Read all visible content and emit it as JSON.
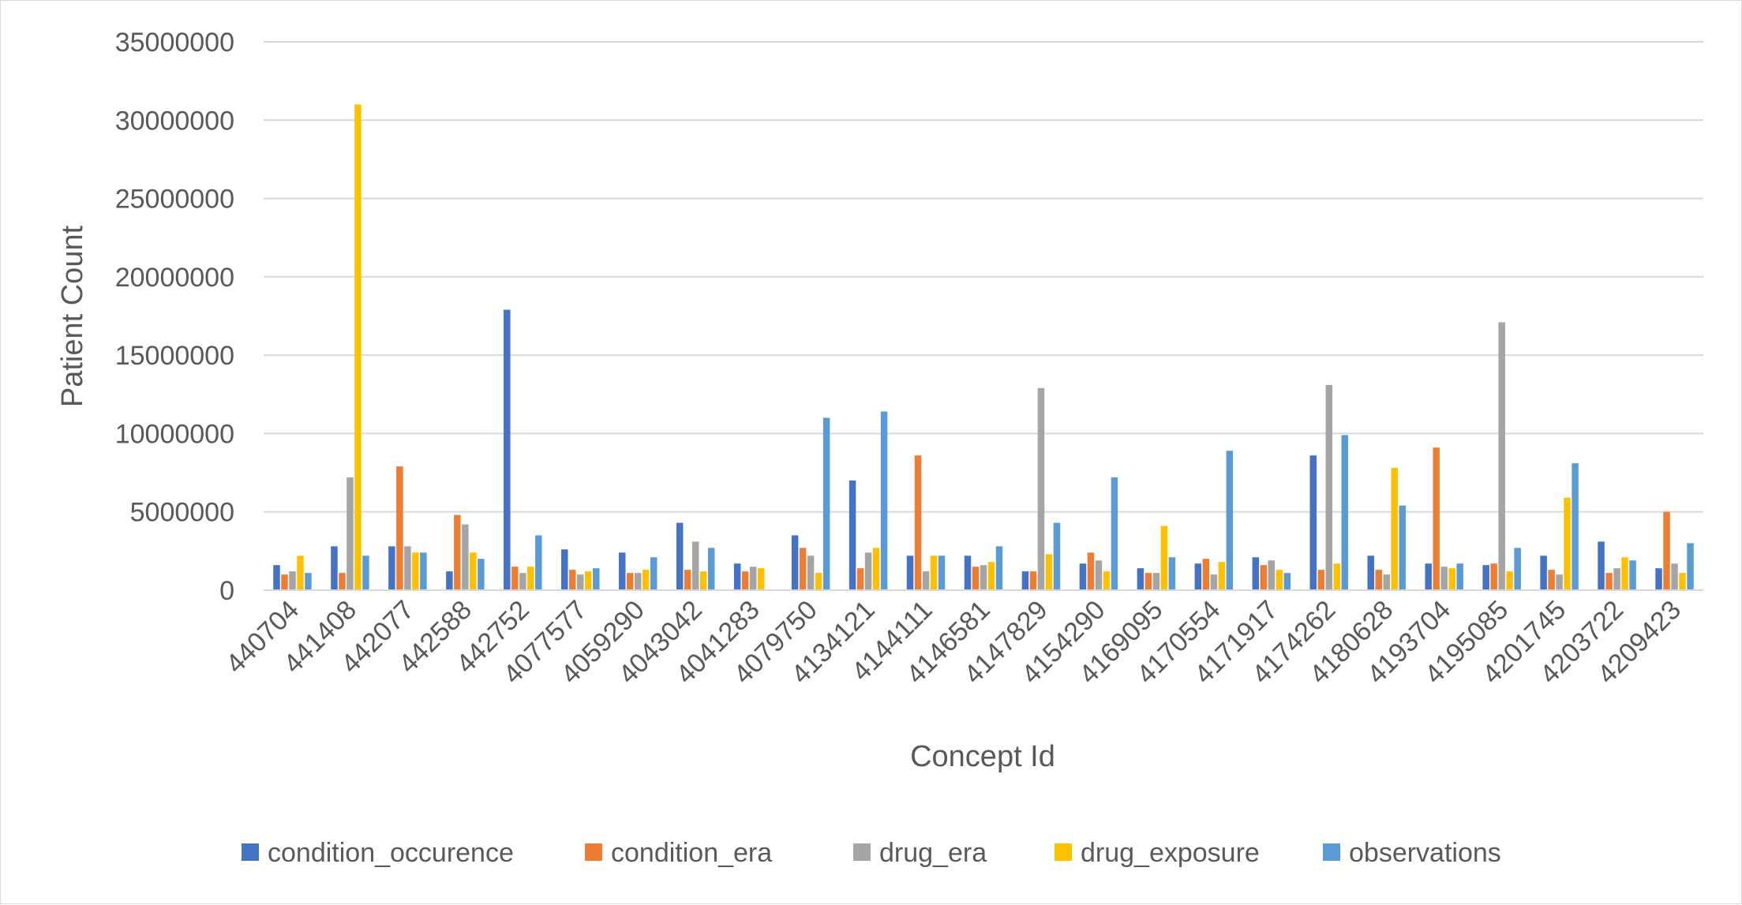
{
  "chart_data": {
    "type": "bar",
    "title": "",
    "xlabel": "Concept Id",
    "ylabel": "Patient Count",
    "ylim": [
      0,
      35000000
    ],
    "yticks": [
      0,
      5000000,
      10000000,
      15000000,
      20000000,
      25000000,
      30000000,
      35000000
    ],
    "grid": true,
    "legend_position": "bottom",
    "categories": [
      "440704",
      "441408",
      "442077",
      "442588",
      "442752",
      "4077577",
      "4059290",
      "4043042",
      "4041283",
      "4079750",
      "4134121",
      "4144111",
      "4146581",
      "4147829",
      "4154290",
      "4169095",
      "4170554",
      "4171917",
      "4174262",
      "4180628",
      "4193704",
      "4195085",
      "4201745",
      "4203722",
      "4209423"
    ],
    "series": [
      {
        "name": "condition_occurence",
        "color": "#4472C4",
        "values": [
          1600000,
          2800000,
          2800000,
          1200000,
          17900000,
          2600000,
          2400000,
          4300000,
          1700000,
          3500000,
          7000000,
          2200000,
          2200000,
          1200000,
          1700000,
          1400000,
          1700000,
          2100000,
          8600000,
          2200000,
          1700000,
          1600000,
          2200000,
          3100000,
          1400000
        ]
      },
      {
        "name": "condition_era",
        "color": "#ED7D31",
        "values": [
          1000000,
          1100000,
          7900000,
          4800000,
          1500000,
          1300000,
          1100000,
          1300000,
          1200000,
          2700000,
          1400000,
          8600000,
          1500000,
          1200000,
          2400000,
          1100000,
          2000000,
          1600000,
          1300000,
          1300000,
          9100000,
          1700000,
          1300000,
          1100000,
          5000000
        ]
      },
      {
        "name": "drug_era",
        "color": "#A5A5A5",
        "values": [
          1200000,
          7200000,
          2800000,
          4200000,
          1100000,
          1000000,
          1100000,
          3100000,
          1500000,
          2200000,
          2400000,
          1200000,
          1600000,
          12900000,
          1900000,
          1100000,
          1000000,
          1900000,
          13100000,
          1000000,
          1500000,
          17100000,
          1000000,
          1400000,
          1700000
        ]
      },
      {
        "name": "drug_exposure",
        "color": "#FFC000",
        "values": [
          2200000,
          31000000,
          2400000,
          2400000,
          1500000,
          1200000,
          1300000,
          1200000,
          1400000,
          1100000,
          2700000,
          2200000,
          1800000,
          2300000,
          1200000,
          4100000,
          1800000,
          1300000,
          1700000,
          7800000,
          1400000,
          1200000,
          5900000,
          2100000,
          1100000
        ]
      },
      {
        "name": "observations",
        "color": "#5B9BD5",
        "values": [
          1100000,
          2200000,
          2400000,
          2000000,
          3500000,
          1400000,
          2100000,
          2700000,
          0,
          11000000,
          11400000,
          2200000,
          2800000,
          4300000,
          7200000,
          2100000,
          8900000,
          1100000,
          9900000,
          5400000,
          1700000,
          2700000,
          8100000,
          1900000,
          3000000
        ]
      }
    ]
  }
}
